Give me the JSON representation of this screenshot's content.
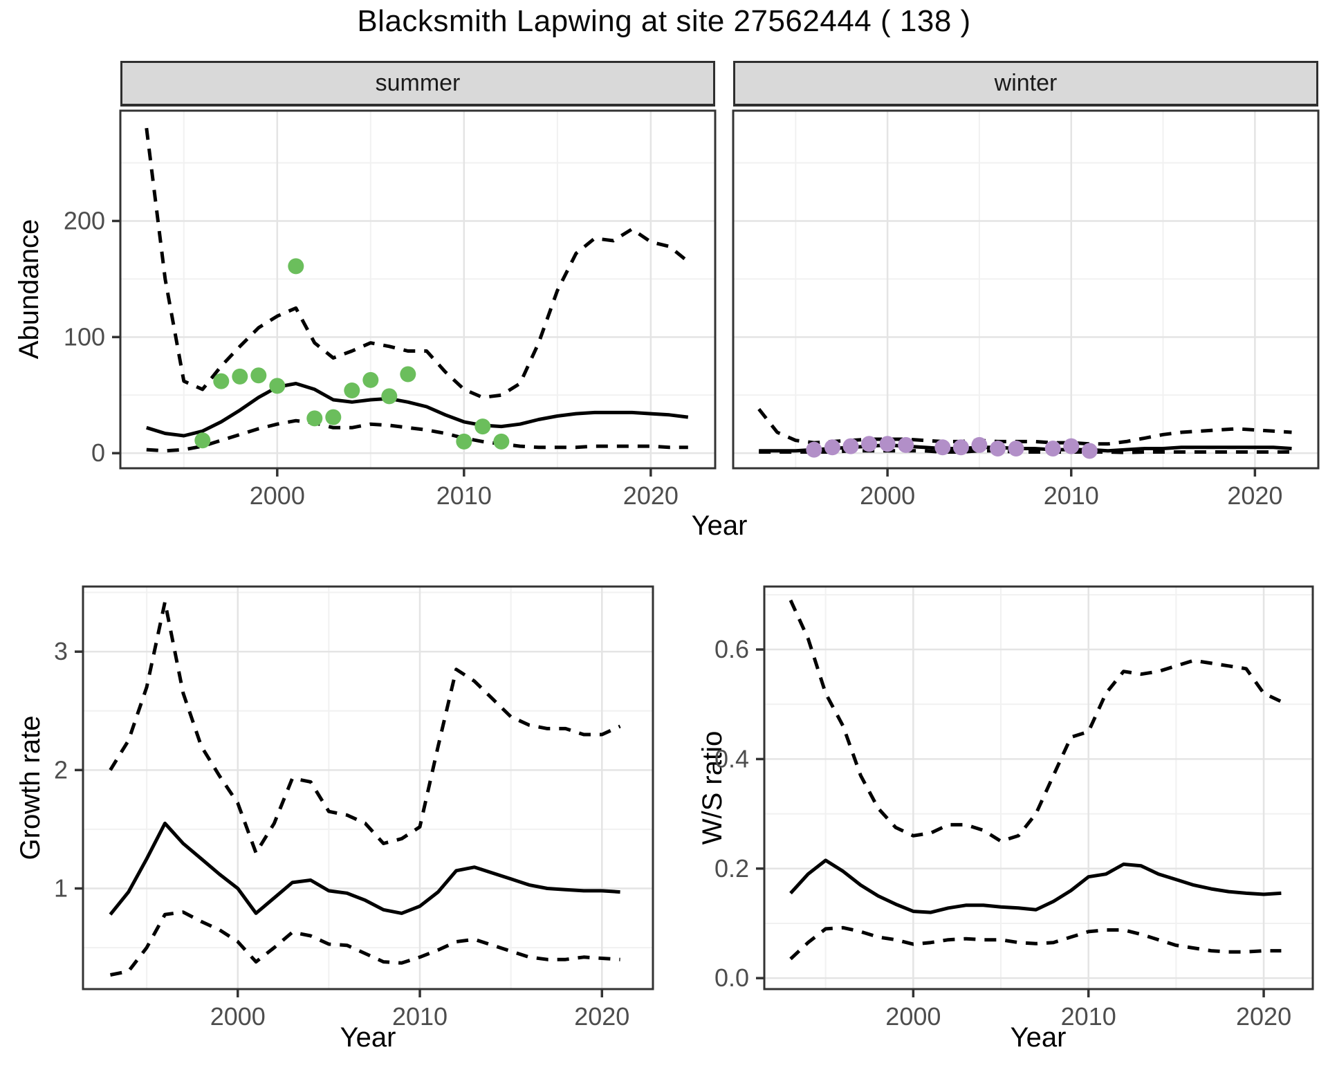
{
  "title": "Blacksmith Lapwing at site 27562444 ( 138 )",
  "colors": {
    "summer_points": "#6BBE5C",
    "winter_points": "#B28FC8",
    "line": "#000000",
    "grid_major": "#E4E4E4",
    "grid_minor": "#F1F1F1",
    "strip_bg": "#D9D9D9",
    "panel_border": "#333333",
    "tick_text": "#4D4D4D"
  },
  "top_row": {
    "ylabel": "Abundance",
    "xlabel": "Year",
    "facets": [
      "summer",
      "winter"
    ]
  },
  "bottom_row": {
    "left": {
      "ylabel": "Growth rate",
      "xlabel": "Year"
    },
    "right": {
      "ylabel": "W/S ratio",
      "xlabel": "Year"
    }
  },
  "chart_data": [
    {
      "id": "abundance-summer",
      "type": "line",
      "facet": "summer",
      "ylabel": "Abundance",
      "xlabel": "Year",
      "x_range": [
        1991.6,
        2023.45
      ],
      "y_range": [
        -13,
        295
      ],
      "x_ticks": [
        2000,
        2010,
        2020
      ],
      "x_tick_labels": [
        "2000",
        "2010",
        "2020"
      ],
      "x_minor": [
        1995,
        2005,
        2015
      ],
      "y_ticks": [
        0,
        100,
        200
      ],
      "y_tick_labels": [
        "0",
        "100",
        "200"
      ],
      "y_minor": [
        50,
        150,
        250
      ],
      "years": [
        1993,
        1994,
        1995,
        1996,
        1997,
        1998,
        1999,
        2000,
        2001,
        2002,
        2003,
        2004,
        2005,
        2006,
        2007,
        2008,
        2009,
        2010,
        2011,
        2012,
        2013,
        2014,
        2015,
        2016,
        2017,
        2018,
        2019,
        2020,
        2021,
        2022
      ],
      "series": [
        {
          "name": "upper_ci",
          "style": "dashed",
          "values": [
            280,
            150,
            62,
            55,
            75,
            92,
            108,
            118,
            125,
            95,
            82,
            88,
            95,
            92,
            88,
            88,
            70,
            55,
            48,
            50,
            60,
            95,
            140,
            172,
            185,
            183,
            193,
            182,
            178,
            165
          ]
        },
        {
          "name": "median",
          "style": "solid",
          "values": [
            22,
            17,
            15,
            19,
            27,
            37,
            48,
            57,
            60,
            55,
            46,
            44,
            46,
            47,
            44,
            40,
            33,
            27,
            24,
            23,
            25,
            29,
            32,
            34,
            35,
            35,
            35,
            34,
            33,
            31
          ]
        },
        {
          "name": "lower_ci",
          "style": "dashed",
          "values": [
            3,
            2,
            3,
            6,
            11,
            16,
            21,
            25,
            28,
            26,
            22,
            22,
            25,
            24,
            22,
            20,
            17,
            13,
            10,
            8,
            6,
            5,
            5,
            5,
            6,
            6,
            6,
            6,
            5,
            5
          ]
        }
      ],
      "points": {
        "color": "#6BBE5C",
        "data": [
          [
            1996,
            11
          ],
          [
            1997,
            62
          ],
          [
            1998,
            66
          ],
          [
            1999,
            67
          ],
          [
            2000,
            58
          ],
          [
            2001,
            161
          ],
          [
            2002,
            30
          ],
          [
            2003,
            31
          ],
          [
            2004,
            54
          ],
          [
            2005,
            63
          ],
          [
            2006,
            49
          ],
          [
            2007,
            68
          ],
          [
            2010,
            10
          ],
          [
            2011,
            23
          ],
          [
            2012,
            10
          ]
        ]
      }
    },
    {
      "id": "abundance-winter",
      "type": "line",
      "facet": "winter",
      "ylabel": "Abundance",
      "xlabel": "Year",
      "x_range": [
        1991.6,
        2023.45
      ],
      "y_range": [
        -13,
        295
      ],
      "x_ticks": [
        2000,
        2010,
        2020
      ],
      "x_tick_labels": [
        "2000",
        "2010",
        "2020"
      ],
      "x_minor": [
        1995,
        2005,
        2015
      ],
      "y_ticks": [
        0,
        100,
        200
      ],
      "y_tick_labels": [
        "0",
        "100",
        "200"
      ],
      "y_minor": [
        50,
        150,
        250
      ],
      "years": [
        1993,
        1994,
        1995,
        1996,
        1997,
        1998,
        1999,
        2000,
        2001,
        2002,
        2003,
        2004,
        2005,
        2006,
        2007,
        2008,
        2009,
        2010,
        2011,
        2012,
        2013,
        2014,
        2015,
        2016,
        2017,
        2018,
        2019,
        2020,
        2021,
        2022
      ],
      "series": [
        {
          "name": "upper_ci",
          "style": "dashed",
          "values": [
            38,
            18,
            11,
            9,
            10,
            11,
            12,
            12,
            12,
            11,
            10,
            10,
            11,
            10,
            10,
            10,
            9,
            9,
            8,
            8,
            10,
            13,
            16,
            18,
            19,
            20,
            21,
            20,
            19,
            18
          ]
        },
        {
          "name": "median",
          "style": "solid",
          "values": [
            2,
            2,
            2,
            3,
            4,
            5,
            6,
            7,
            6,
            5,
            4,
            4,
            5,
            5,
            4,
            4,
            3,
            3,
            3,
            2,
            3,
            4,
            4,
            5,
            5,
            5,
            5,
            5,
            5,
            4
          ]
        },
        {
          "name": "lower_ci",
          "style": "dashed",
          "values": [
            1,
            1,
            1,
            1,
            1,
            2,
            2,
            2,
            2,
            2,
            1,
            1,
            2,
            2,
            1,
            1,
            1,
            1,
            1,
            1,
            0.5,
            1,
            1,
            1,
            1,
            1,
            1,
            1,
            1,
            1
          ]
        }
      ],
      "points": {
        "color": "#B28FC8",
        "data": [
          [
            1996,
            3
          ],
          [
            1997,
            5
          ],
          [
            1998,
            6
          ],
          [
            1999,
            8
          ],
          [
            2000,
            8
          ],
          [
            2001,
            7
          ],
          [
            2003,
            5
          ],
          [
            2004,
            5
          ],
          [
            2005,
            7
          ],
          [
            2006,
            4
          ],
          [
            2007,
            4
          ],
          [
            2009,
            4
          ],
          [
            2010,
            6
          ],
          [
            2011,
            2
          ]
        ]
      }
    },
    {
      "id": "growth-rate",
      "type": "line",
      "facet": null,
      "ylabel": "Growth rate",
      "xlabel": "Year",
      "x_range": [
        1991.5,
        2022.8
      ],
      "y_range": [
        0.15,
        3.55
      ],
      "x_ticks": [
        2000,
        2010,
        2020
      ],
      "x_tick_labels": [
        "2000",
        "2010",
        "2020"
      ],
      "x_minor": [
        1995,
        2005,
        2015
      ],
      "y_ticks": [
        1,
        2,
        3
      ],
      "y_tick_labels": [
        "1",
        "2",
        "3"
      ],
      "y_minor": [
        0.5,
        1.5,
        2.5,
        3.5
      ],
      "years": [
        1993,
        1994,
        1995,
        1996,
        1997,
        1998,
        1999,
        2000,
        2001,
        2002,
        2003,
        2004,
        2005,
        2006,
        2007,
        2008,
        2009,
        2010,
        2011,
        2012,
        2013,
        2014,
        2015,
        2016,
        2017,
        2018,
        2019,
        2020,
        2021
      ],
      "series": [
        {
          "name": "upper_ci",
          "style": "dashed",
          "values": [
            2.0,
            2.25,
            2.7,
            3.42,
            2.65,
            2.2,
            1.95,
            1.72,
            1.3,
            1.55,
            1.93,
            1.9,
            1.65,
            1.62,
            1.55,
            1.38,
            1.42,
            1.52,
            2.2,
            2.85,
            2.75,
            2.6,
            2.45,
            2.38,
            2.35,
            2.35,
            2.3,
            2.3,
            2.37
          ]
        },
        {
          "name": "median",
          "style": "solid",
          "values": [
            0.78,
            0.97,
            1.25,
            1.55,
            1.38,
            1.25,
            1.12,
            1.0,
            0.79,
            0.92,
            1.05,
            1.07,
            0.98,
            0.96,
            0.9,
            0.82,
            0.79,
            0.85,
            0.97,
            1.15,
            1.18,
            1.13,
            1.08,
            1.03,
            1.0,
            0.99,
            0.98,
            0.98,
            0.97
          ]
        },
        {
          "name": "lower_ci",
          "style": "dashed",
          "values": [
            0.27,
            0.3,
            0.5,
            0.78,
            0.8,
            0.72,
            0.65,
            0.55,
            0.38,
            0.5,
            0.63,
            0.6,
            0.53,
            0.52,
            0.45,
            0.38,
            0.37,
            0.42,
            0.48,
            0.55,
            0.57,
            0.52,
            0.47,
            0.42,
            0.4,
            0.4,
            0.42,
            0.41,
            0.4
          ]
        }
      ],
      "points": null
    },
    {
      "id": "ws-ratio",
      "type": "line",
      "facet": null,
      "ylabel": "W/S ratio",
      "xlabel": "Year",
      "x_range": [
        1991.5,
        2022.8
      ],
      "y_range": [
        -0.02,
        0.715
      ],
      "x_ticks": [
        2000,
        2010,
        2020
      ],
      "x_tick_labels": [
        "2000",
        "2010",
        "2020"
      ],
      "x_minor": [
        1995,
        2005,
        2015
      ],
      "y_ticks": [
        0.0,
        0.2,
        0.4,
        0.6
      ],
      "y_tick_labels": [
        "0.0",
        "0.2",
        "0.4",
        "0.6"
      ],
      "y_minor": [
        0.1,
        0.3,
        0.5,
        0.7
      ],
      "years": [
        1993,
        1994,
        1995,
        1996,
        1997,
        1998,
        1999,
        2000,
        2001,
        2002,
        2003,
        2004,
        2005,
        2006,
        2007,
        2008,
        2009,
        2010,
        2011,
        2012,
        2013,
        2014,
        2015,
        2016,
        2017,
        2018,
        2019,
        2020,
        2021
      ],
      "series": [
        {
          "name": "upper_ci",
          "style": "dashed",
          "values": [
            0.69,
            0.62,
            0.52,
            0.46,
            0.37,
            0.31,
            0.275,
            0.26,
            0.265,
            0.28,
            0.28,
            0.27,
            0.25,
            0.26,
            0.3,
            0.37,
            0.44,
            0.45,
            0.52,
            0.56,
            0.555,
            0.56,
            0.57,
            0.58,
            0.575,
            0.57,
            0.565,
            0.52,
            0.505
          ]
        },
        {
          "name": "median",
          "style": "solid",
          "values": [
            0.155,
            0.19,
            0.215,
            0.195,
            0.17,
            0.15,
            0.135,
            0.122,
            0.12,
            0.128,
            0.133,
            0.133,
            0.13,
            0.128,
            0.125,
            0.14,
            0.16,
            0.185,
            0.19,
            0.208,
            0.205,
            0.19,
            0.18,
            0.17,
            0.163,
            0.158,
            0.155,
            0.153,
            0.155
          ]
        },
        {
          "name": "lower_ci",
          "style": "dashed",
          "values": [
            0.035,
            0.065,
            0.09,
            0.092,
            0.085,
            0.075,
            0.07,
            0.062,
            0.065,
            0.07,
            0.072,
            0.07,
            0.07,
            0.065,
            0.063,
            0.065,
            0.075,
            0.085,
            0.088,
            0.088,
            0.08,
            0.07,
            0.06,
            0.055,
            0.05,
            0.048,
            0.048,
            0.05,
            0.05
          ]
        }
      ],
      "points": null
    }
  ]
}
